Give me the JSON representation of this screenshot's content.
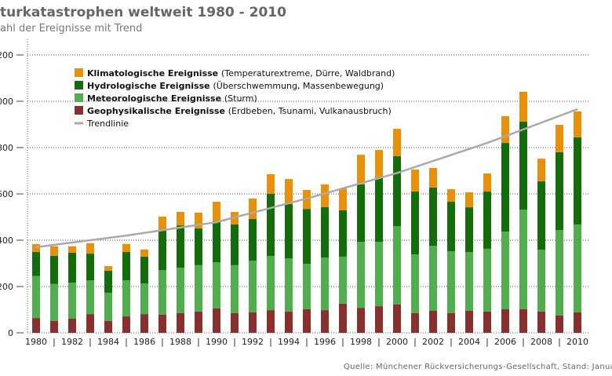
{
  "title": "turkatastrophen weltweit 1980 - 2010",
  "subtitle": "ahl der Ereignisse mit Trend",
  "source": "Quelle: Münchener Rückversicherungs-Gesellschaft, Stand: Januar 2",
  "chart_data": {
    "type": "bar",
    "stacked": true,
    "title": "turkatastrophen weltweit 1980 - 2010",
    "subtitle": "ahl der Ereignisse mit Trend",
    "xlabel": "",
    "ylabel": "",
    "ylim": [
      0,
      1200
    ],
    "yticks": [
      0,
      200,
      400,
      600,
      800,
      1000,
      1200
    ],
    "grid": true,
    "legend_position": "top-left",
    "categories": [
      1980,
      1981,
      1982,
      1983,
      1984,
      1985,
      1986,
      1987,
      1988,
      1989,
      1990,
      1991,
      1992,
      1993,
      1994,
      1995,
      1996,
      1997,
      1998,
      1999,
      2000,
      2001,
      2002,
      2003,
      2004,
      2005,
      2006,
      2007,
      2008,
      2009,
      2010
    ],
    "xtick_labels": [
      "1980",
      "1982",
      "1984",
      "1986",
      "1988",
      "1990",
      "1992",
      "1994",
      "1996",
      "1998",
      "2000",
      "2002",
      "2004",
      "2006",
      "2008",
      "2010"
    ],
    "series": [
      {
        "name": "Geophysikalische Ereignisse",
        "detail": "(Erdbeben, Tsunami, Vulkanausbruch)",
        "color": "#882f2f",
        "values": [
          64,
          51,
          61,
          81,
          51,
          71,
          81,
          78,
          85,
          92,
          105,
          85,
          88,
          98,
          92,
          102,
          98,
          126,
          108,
          115,
          122,
          85,
          95,
          85,
          95,
          92,
          102,
          102,
          92,
          75,
          88
        ]
      },
      {
        "name": "Meteorologische Ereignisse",
        "detail": "(Sturm)",
        "color": "#52ad4e",
        "values": [
          181,
          160,
          156,
          146,
          122,
          156,
          132,
          193,
          196,
          200,
          200,
          207,
          224,
          234,
          230,
          196,
          227,
          203,
          285,
          278,
          339,
          254,
          281,
          267,
          254,
          271,
          335,
          430,
          267,
          369,
          380
        ]
      },
      {
        "name": "Hydrologische Ereignisse",
        "detail": "(Überschwemmung, Massenbewegung)",
        "color": "#146c0a",
        "values": [
          104,
          122,
          129,
          115,
          95,
          122,
          116,
          173,
          183,
          159,
          176,
          176,
          180,
          268,
          234,
          237,
          218,
          200,
          248,
          276,
          302,
          271,
          251,
          214,
          193,
          247,
          383,
          380,
          295,
          336,
          376
        ]
      },
      {
        "name": "Klimatologische Ereignisse",
        "detail": "(Temperaturextreme, Dürre, Waldbrand)",
        "color": "#e8900a",
        "values": [
          34,
          41,
          28,
          45,
          20,
          35,
          31,
          58,
          58,
          68,
          85,
          54,
          88,
          85,
          108,
          82,
          98,
          95,
          128,
          121,
          118,
          95,
          85,
          54,
          65,
          78,
          116,
          129,
          98,
          118,
          112
        ]
      }
    ],
    "trend": {
      "name": "Trendlinie",
      "color": "#aaaaaa",
      "x": [
        1980,
        1985,
        1990,
        1995,
        2000,
        2005,
        2010
      ],
      "values": [
        370,
        420,
        478,
        580,
        690,
        820,
        966
      ]
    }
  }
}
